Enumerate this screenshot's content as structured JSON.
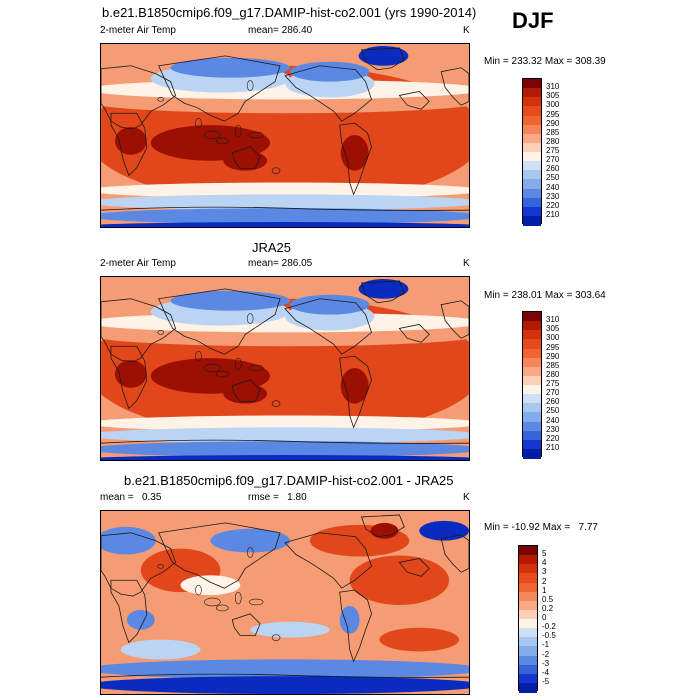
{
  "season": "DJF",
  "panels": [
    {
      "id": "model",
      "title": "b.e21.B1850cmip6.f09_g17.DAMIP-hist-co2.001 (yrs 1990-2014)",
      "left_label": "2-meter Air Temp",
      "center_label": "mean= 286.40",
      "right_label": "K",
      "minmax": "Min = 233.32 Max = 308.39",
      "colorbar": {
        "labels": [
          "310",
          "305",
          "300",
          "295",
          "290",
          "285",
          "280",
          "275",
          "270",
          "260",
          "250",
          "240",
          "230",
          "220",
          "210"
        ],
        "colors": [
          "#7a0403",
          "#b11a05",
          "#d3300c",
          "#e74a1b",
          "#f06433",
          "#f5855b",
          "#f9a986",
          "#fcd0b6",
          "#fff3e8",
          "#cde0f7",
          "#a9c8f0",
          "#84acea",
          "#5b88e3",
          "#3563da",
          "#1438cf",
          "#031ea6"
        ]
      },
      "kind": "abs"
    },
    {
      "id": "obs",
      "title": "JRA25",
      "left_label": "2-meter Air Temp",
      "center_label": "mean= 286.05",
      "right_label": "K",
      "minmax": "Min = 238.01 Max = 303.64",
      "colorbar": {
        "labels": [
          "310",
          "305",
          "300",
          "295",
          "290",
          "285",
          "280",
          "275",
          "270",
          "260",
          "250",
          "240",
          "230",
          "220",
          "210"
        ],
        "colors": [
          "#7a0403",
          "#b11a05",
          "#d3300c",
          "#e74a1b",
          "#f06433",
          "#f5855b",
          "#f9a986",
          "#fcd0b6",
          "#fff3e8",
          "#cde0f7",
          "#a9c8f0",
          "#84acea",
          "#5b88e3",
          "#3563da",
          "#1438cf",
          "#031ea6"
        ]
      },
      "kind": "abs"
    },
    {
      "id": "diff",
      "title": "b.e21.B1850cmip6.f09_g17.DAMIP-hist-co2.001 - JRA25",
      "left_label": "mean =   0.35",
      "center_label": "rmse =   1.80",
      "right_label": "K",
      "minmax": "Min = -10.92 Max =   7.77",
      "colorbar": {
        "labels": [
          "5",
          "4",
          "3",
          "2",
          "1",
          "0.5",
          "0.2",
          "0",
          "-0.2",
          "-0.5",
          "-1",
          "-2",
          "-3",
          "-4",
          "-5"
        ],
        "colors": [
          "#7a0403",
          "#b11a05",
          "#d3300c",
          "#e74a1b",
          "#f06433",
          "#f5855b",
          "#f9a986",
          "#fcd0b6",
          "#fff3e8",
          "#cde0f7",
          "#a9c8f0",
          "#84acea",
          "#5b88e3",
          "#3563da",
          "#1438cf",
          "#031ea6"
        ]
      },
      "kind": "diff"
    }
  ],
  "colors": {
    "warm_dark": "#9c1004",
    "warm": "#e2471b",
    "warm_light": "#f59c74",
    "neutral": "#fff3e8",
    "cool_light": "#bcd4f4",
    "cool": "#5b88e3",
    "cool_dark": "#0a2bbf",
    "coast": "#1a1a1a"
  }
}
